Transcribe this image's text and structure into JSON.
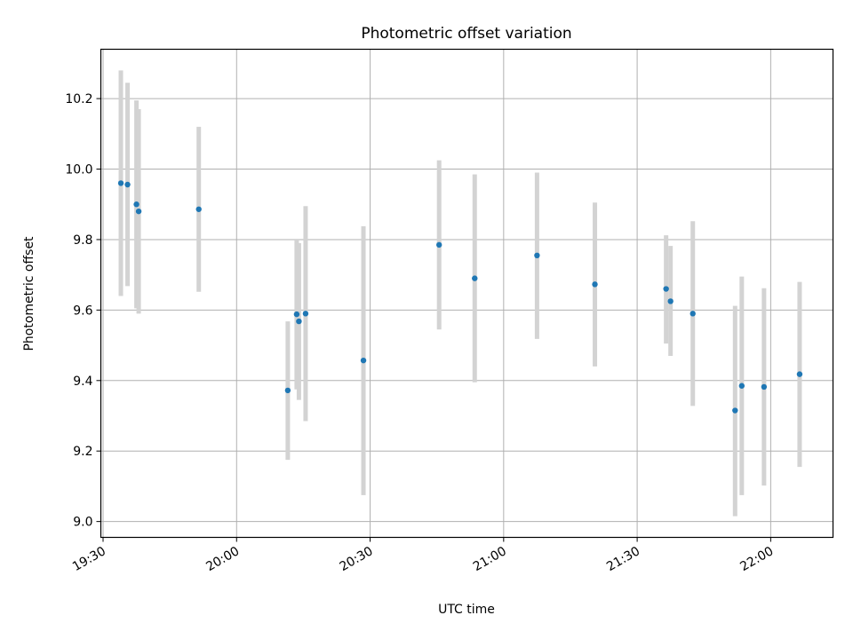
{
  "chart_data": {
    "type": "scatter",
    "title": "Photometric offset variation",
    "xlabel": "UTC time",
    "ylabel": "Photometric offset",
    "x_ticks": [
      "19:30",
      "20:00",
      "20:30",
      "21:00",
      "21:30",
      "22:00"
    ],
    "y_ticks": [
      "9.0",
      "9.2",
      "9.4",
      "9.6",
      "9.8",
      "10.0",
      "10.2"
    ],
    "xlim": [
      "19:29:30",
      "22:14:00"
    ],
    "ylim": [
      8.955,
      10.34
    ],
    "grid": true,
    "colors": {
      "point": "#1f77b4",
      "errorbar": "#d3d3d3",
      "grid": "#b0b0b0"
    },
    "points": [
      {
        "x": "19:34:00",
        "y": 9.96,
        "ylow": 9.64,
        "yhigh": 10.28
      },
      {
        "x": "19:35:30",
        "y": 9.956,
        "ylow": 9.668,
        "yhigh": 10.245
      },
      {
        "x": "19:37:30",
        "y": 9.9,
        "ylow": 9.605,
        "yhigh": 10.195
      },
      {
        "x": "19:38:00",
        "y": 9.88,
        "ylow": 9.59,
        "yhigh": 10.17
      },
      {
        "x": "19:51:30",
        "y": 9.886,
        "ylow": 9.652,
        "yhigh": 10.12
      },
      {
        "x": "20:11:30",
        "y": 9.372,
        "ylow": 9.175,
        "yhigh": 9.568
      },
      {
        "x": "20:13:30",
        "y": 9.588,
        "ylow": 9.375,
        "yhigh": 9.8
      },
      {
        "x": "20:14:00",
        "y": 9.568,
        "ylow": 9.345,
        "yhigh": 9.79
      },
      {
        "x": "20:15:30",
        "y": 9.59,
        "ylow": 9.285,
        "yhigh": 9.895
      },
      {
        "x": "20:28:30",
        "y": 9.457,
        "ylow": 9.075,
        "yhigh": 9.838
      },
      {
        "x": "20:45:30",
        "y": 9.785,
        "ylow": 9.545,
        "yhigh": 10.025
      },
      {
        "x": "20:53:30",
        "y": 9.69,
        "ylow": 9.395,
        "yhigh": 9.985
      },
      {
        "x": "21:07:30",
        "y": 9.755,
        "ylow": 9.518,
        "yhigh": 9.99
      },
      {
        "x": "21:20:30",
        "y": 9.673,
        "ylow": 9.44,
        "yhigh": 9.905
      },
      {
        "x": "21:36:30",
        "y": 9.66,
        "ylow": 9.505,
        "yhigh": 9.812
      },
      {
        "x": "21:37:30",
        "y": 9.625,
        "ylow": 9.47,
        "yhigh": 9.782
      },
      {
        "x": "21:42:30",
        "y": 9.59,
        "ylow": 9.328,
        "yhigh": 9.852
      },
      {
        "x": "21:52:00",
        "y": 9.315,
        "ylow": 9.015,
        "yhigh": 9.612
      },
      {
        "x": "21:53:30",
        "y": 9.385,
        "ylow": 9.075,
        "yhigh": 9.695
      },
      {
        "x": "21:58:30",
        "y": 9.382,
        "ylow": 9.102,
        "yhigh": 9.662
      },
      {
        "x": "22:06:30",
        "y": 9.418,
        "ylow": 9.155,
        "yhigh": 9.68
      }
    ]
  }
}
